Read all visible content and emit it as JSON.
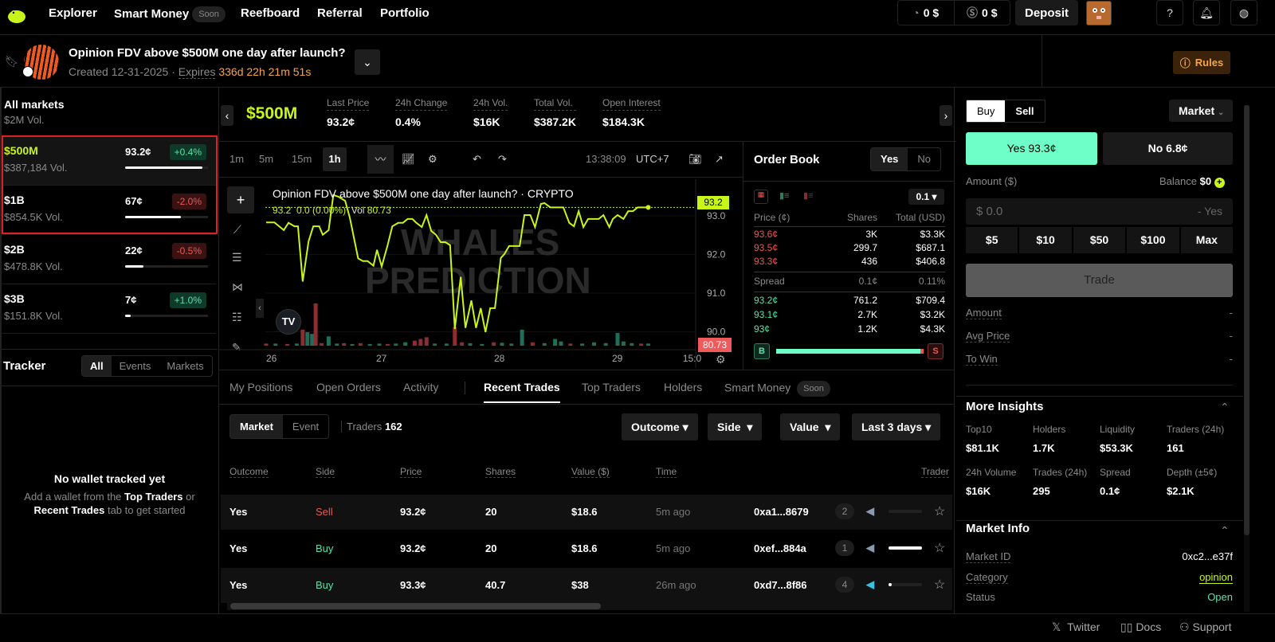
{
  "nav": {
    "items": [
      "Explorer",
      "Smart Money",
      "Reefboard",
      "Referral",
      "Portfolio"
    ],
    "soon": "Soon",
    "balance1": "0 $",
    "balance2": "0 $",
    "deposit": "Deposit"
  },
  "market": {
    "title": "Opinion FDV above $500M one day after launch?",
    "created": "Created 12-31-2025",
    "expires_label": "Expires",
    "countdown": "336d 22h 21m 51s",
    "rules": "Rules"
  },
  "sidebar": {
    "all_title": "All markets",
    "all_vol": "$2M Vol.",
    "markets": [
      {
        "name": "$500M",
        "vol": "$387,184 Vol.",
        "price": "93.2¢",
        "change": "+0.4%",
        "dir": "up",
        "prob": 0.93,
        "selected": true
      },
      {
        "name": "$1B",
        "vol": "$854.5K Vol.",
        "price": "67¢",
        "change": "-2.0%",
        "dir": "down",
        "prob": 0.67
      },
      {
        "name": "$2B",
        "vol": "$478.8K Vol.",
        "price": "22¢",
        "change": "-0.5%",
        "dir": "down",
        "prob": 0.22
      },
      {
        "name": "$3B",
        "vol": "$151.8K Vol.",
        "price": "7¢",
        "change": "+1.0%",
        "dir": "up",
        "prob": 0.07
      }
    ],
    "tracker": {
      "title": "Tracker",
      "filters": [
        "All",
        "Events",
        "Markets"
      ],
      "empty_title": "No wallet tracked yet",
      "empty_1": "Add a wallet from the",
      "link1": "Top Traders",
      "or": "or",
      "link2": "Recent Trades",
      "empty_2": "tab to get started"
    }
  },
  "stats": {
    "market": "$500M",
    "items": [
      {
        "label": "Last Price",
        "value": "93.2¢"
      },
      {
        "label": "24h Change",
        "value": "0.4%"
      },
      {
        "label": "24h Vol.",
        "value": "$16K"
      },
      {
        "label": "Total Vol.",
        "value": "$387.2K"
      },
      {
        "label": "Open Interest",
        "value": "$184.3K"
      }
    ]
  },
  "toolbar": {
    "intervals": [
      "1m",
      "5m",
      "15m",
      "1h"
    ],
    "active": "1h",
    "time": "13:38:09",
    "tz": "UTC+7"
  },
  "chart_data": {
    "type": "line",
    "title": "Opinion FDV above $500M one day after launch? · CRYPTO",
    "legend_price": "93.2",
    "legend_change": "0.0 (0.00%)",
    "legend_vol_label": "Vol",
    "legend_vol": "80.73",
    "last_price_tag": "93.2",
    "last_vol_tag": "80.73",
    "watermark": [
      "WHALES",
      "PREDICTION"
    ],
    "x_ticks": [
      "26",
      "27",
      "28",
      "29",
      "15:0"
    ],
    "y_ticks": [
      "93.0",
      "92.0",
      "91.0",
      "90.0"
    ],
    "ylim": [
      89.6,
      93.9
    ],
    "xlim": [
      25.96,
      29.75
    ],
    "line_color": "#c8f51a",
    "x": [
      26.02,
      26.09,
      26.17,
      26.21,
      26.26,
      26.29,
      26.33,
      26.38,
      26.42,
      26.47,
      26.5,
      26.55,
      26.59,
      26.63,
      26.69,
      26.73,
      26.8,
      26.84,
      26.88,
      26.93,
      26.96,
      27.0,
      27.05,
      27.09,
      27.14,
      27.18,
      27.22,
      27.26,
      27.29,
      27.34,
      27.38,
      27.42,
      27.46,
      27.5,
      27.54,
      27.58,
      27.62,
      27.67,
      27.71,
      27.76,
      27.8,
      27.84,
      27.88,
      27.92,
      27.96,
      28.01,
      28.04,
      28.08,
      28.13,
      28.17,
      28.21,
      28.26,
      28.3,
      28.35,
      28.38,
      28.43,
      28.54,
      28.59,
      28.63,
      28.67,
      28.71,
      28.75,
      28.84,
      28.88,
      28.93,
      28.96,
      29.0,
      29.05,
      29.09,
      29.13,
      29.17,
      29.26
    ],
    "y": [
      92.83,
      92.83,
      92.63,
      92.82,
      92.73,
      92.73,
      91.3,
      92.34,
      92.73,
      92.73,
      92.51,
      92.63,
      93.54,
      93.5,
      93.39,
      92.95,
      91.9,
      91.83,
      91.83,
      91.71,
      92.12,
      91.69,
      92.24,
      92.73,
      92.82,
      92.82,
      92.92,
      92.92,
      92.83,
      92.71,
      93.02,
      92.61,
      92.51,
      92.32,
      92.32,
      92.24,
      90.07,
      91.42,
      90.1,
      90.81,
      90.1,
      90.61,
      89.99,
      90.61,
      90.61,
      91.91,
      92.01,
      92.22,
      92.22,
      92.22,
      93.02,
      93.02,
      92.71,
      93.31,
      93.33,
      93.22,
      93.22,
      92.82,
      92.73,
      93.12,
      92.71,
      92.92,
      92.92,
      93.02,
      92.71,
      92.92,
      93.02,
      92.92,
      93.12,
      93.12,
      93.22,
      93.22
    ],
    "volume": {
      "x": [
        26.02,
        26.1,
        26.2,
        26.28,
        26.33,
        26.37,
        26.41,
        26.44,
        26.49,
        26.55,
        26.62,
        26.68,
        26.75,
        26.82,
        26.9,
        26.98,
        27.05,
        27.12,
        27.2,
        27.28,
        27.33,
        27.38,
        27.45,
        27.55,
        27.62,
        27.68,
        27.75,
        27.85,
        27.95,
        28.02,
        28.1,
        28.19,
        28.28,
        28.38,
        28.47,
        28.52,
        28.6,
        28.7,
        28.8,
        28.9,
        29.0,
        29.05,
        29.12,
        29.2,
        29.26
      ],
      "relative": [
        0.05,
        0.05,
        0.04,
        0.05,
        0.38,
        0.32,
        0.28,
        1.0,
        0.06,
        0.22,
        0.05,
        0.06,
        0.04,
        0.06,
        0.04,
        0.05,
        0.04,
        0.05,
        0.08,
        0.12,
        0.16,
        0.2,
        0.05,
        0.05,
        0.44,
        0.08,
        0.06,
        0.04,
        0.08,
        0.07,
        0.05,
        0.38,
        0.08,
        0.06,
        0.16,
        0.1,
        0.05,
        0.05,
        0.08,
        0.06,
        0.3,
        0.1,
        0.06,
        0.05,
        0.05
      ],
      "direction": [
        "down",
        "up",
        "down",
        "up",
        "down",
        "up",
        "up",
        "down",
        "down",
        "up",
        "up",
        "down",
        "up",
        "down",
        "up",
        "up",
        "down",
        "up",
        "up",
        "down",
        "down",
        "down",
        "up",
        "up",
        "down",
        "down",
        "up",
        "up",
        "down",
        "up",
        "up",
        "up",
        "down",
        "up",
        "up",
        "up",
        "down",
        "up",
        "up",
        "up",
        "up",
        "up",
        "up",
        "down",
        "up"
      ]
    }
  },
  "orderbook": {
    "title": "Order Book",
    "toggle": [
      "Yes",
      "No"
    ],
    "tick": "0.1",
    "headers": [
      "Price (¢)",
      "Shares",
      "Total (USD)"
    ],
    "asks": [
      {
        "price": "93.6¢",
        "shares": "3K",
        "total": "$3.3K"
      },
      {
        "price": "93.5¢",
        "shares": "299.7",
        "total": "$687.1"
      },
      {
        "price": "93.3¢",
        "shares": "436",
        "total": "$406.8"
      }
    ],
    "spread": {
      "label": "Spread",
      "value": "0.1¢",
      "pct": "0.11%"
    },
    "bids": [
      {
        "price": "93.2¢",
        "shares": "761.2",
        "total": "$709.4"
      },
      {
        "price": "93.1¢",
        "shares": "2.7K",
        "total": "$3.2K"
      },
      {
        "price": "93¢",
        "shares": "1.2K",
        "total": "$4.3K"
      }
    ],
    "buy_label": "B",
    "sell_label": "S",
    "buy_ratio": 0.98
  },
  "tabs": {
    "items": [
      "My Positions",
      "Open Orders",
      "Activity",
      "Recent Trades",
      "Top Traders",
      "Holders",
      "Smart Money"
    ],
    "active": "Recent Trades",
    "soon": "Soon"
  },
  "filters": {
    "scope": [
      "Market",
      "Event"
    ],
    "traders_label": "Traders",
    "traders_count": "162",
    "dropdowns": [
      "Outcome",
      "Side",
      "Value",
      "Last 3 days"
    ]
  },
  "trades": {
    "headers": [
      "Outcome",
      "Side",
      "Price",
      "Shares",
      "Value ($)",
      "Time",
      "Trader"
    ],
    "rows": [
      {
        "outcome": "Yes",
        "side": "Sell",
        "price": "93.2¢",
        "shares": "20",
        "value": "$18.6",
        "time": "5m ago",
        "trader": "0xa1...8679",
        "rank": "2",
        "bar": 0.0
      },
      {
        "outcome": "Yes",
        "side": "Buy",
        "price": "93.2¢",
        "shares": "20",
        "value": "$18.6",
        "time": "5m ago",
        "trader": "0xef...884a",
        "rank": "1",
        "bar": 1.0
      },
      {
        "outcome": "Yes",
        "side": "Buy",
        "price": "93.3¢",
        "shares": "40.7",
        "value": "$38",
        "time": "26m ago",
        "trader": "0xd7...8f86",
        "rank": "4",
        "bar": 0.1
      }
    ]
  },
  "trade": {
    "sides": [
      "Buy",
      "Sell"
    ],
    "order_type": "Market",
    "yes": "Yes 93.3¢",
    "no": "No 6.8¢",
    "amount_label": "Amount ($)",
    "balance_label": "Balance",
    "balance": "$0",
    "placeholder": "$ 0.0",
    "suffix": "- Yes",
    "quick": [
      "$5",
      "$10",
      "$50",
      "$100",
      "Max"
    ],
    "submit": "Trade",
    "summary": [
      {
        "label": "Amount",
        "value": "-"
      },
      {
        "label": "Avg Price",
        "value": "-"
      },
      {
        "label": "To Win",
        "value": "-"
      }
    ]
  },
  "insights": {
    "title": "More Insights",
    "items": [
      {
        "label": "Top10",
        "value": "$81.1K"
      },
      {
        "label": "Holders",
        "value": "1.7K"
      },
      {
        "label": "Liquidity",
        "value": "$53.3K"
      },
      {
        "label": "Traders (24h)",
        "value": "161"
      },
      {
        "label": "24h Volume",
        "value": "$16K"
      },
      {
        "label": "Trades (24h)",
        "value": "295"
      },
      {
        "label": "Spread",
        "value": "0.1¢"
      },
      {
        "label": "Depth (±5¢)",
        "value": "$2.1K"
      }
    ]
  },
  "info": {
    "title": "Market Info",
    "market_id_label": "Market ID",
    "market_id": "0xc2...e37f",
    "category_label": "Category",
    "category": "opinion",
    "status_label": "Status",
    "status": "Open"
  },
  "footer": {
    "twitter": "Twitter",
    "docs": "Docs",
    "support": "Support"
  },
  "colors": {
    "accent": "#c8f51a",
    "yes": "#6effc8",
    "buy": "#58e2a8",
    "sell": "#f05555",
    "orange": "#f5a54a"
  }
}
